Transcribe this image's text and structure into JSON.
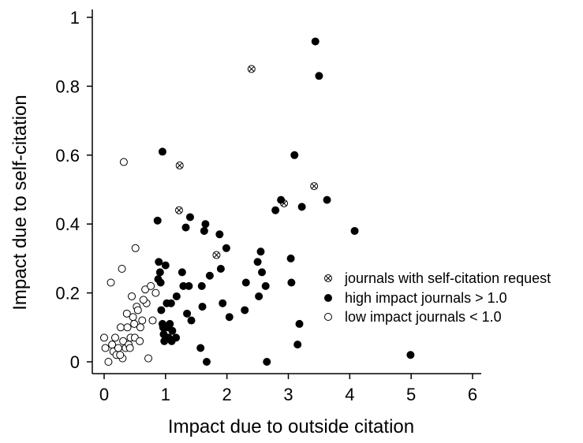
{
  "chart_data": {
    "type": "scatter",
    "title": "",
    "xlabel": "Impact due to outside citation",
    "ylabel": "Impact due to self-citation",
    "xlim": [
      0,
      6
    ],
    "ylim": [
      0,
      1
    ],
    "xticks": [
      "0",
      "1",
      "2",
      "3",
      "4",
      "5",
      "6"
    ],
    "yticks": [
      "0",
      "0.2",
      "0.4",
      "0.6",
      "0.8",
      "1"
    ],
    "grid": false,
    "legend_position": "right",
    "series": [
      {
        "name": "journals with self-citation request",
        "marker": "circle-crossed",
        "points": [
          [
            1.23,
            0.57
          ],
          [
            1.22,
            0.44
          ],
          [
            1.83,
            0.31
          ],
          [
            2.4,
            0.85
          ],
          [
            2.93,
            0.46
          ],
          [
            3.42,
            0.51
          ]
        ]
      },
      {
        "name": "high impact journals > 1.0",
        "marker": "filled-circle",
        "points": [
          [
            0.95,
            0.61
          ],
          [
            0.87,
            0.41
          ],
          [
            0.89,
            0.29
          ],
          [
            0.88,
            0.24
          ],
          [
            0.91,
            0.26
          ],
          [
            0.92,
            0.23
          ],
          [
            0.93,
            0.15
          ],
          [
            0.95,
            0.11
          ],
          [
            0.96,
            0.1
          ],
          [
            0.97,
            0.08
          ],
          [
            0.98,
            0.06
          ],
          [
            1.0,
            0.28
          ],
          [
            1.02,
            0.17
          ],
          [
            1.03,
            0.1
          ],
          [
            1.05,
            0.07
          ],
          [
            1.07,
            0.11
          ],
          [
            1.09,
            0.17
          ],
          [
            1.1,
            0.06
          ],
          [
            1.11,
            0.09
          ],
          [
            1.17,
            0.07
          ],
          [
            1.18,
            0.19
          ],
          [
            1.27,
            0.26
          ],
          [
            1.29,
            0.22
          ],
          [
            1.33,
            0.39
          ],
          [
            1.35,
            0.14
          ],
          [
            1.38,
            0.22
          ],
          [
            1.4,
            0.42
          ],
          [
            1.42,
            0.12
          ],
          [
            1.57,
            0.04
          ],
          [
            1.59,
            0.22
          ],
          [
            1.6,
            0.16
          ],
          [
            1.63,
            0.38
          ],
          [
            1.65,
            0.4
          ],
          [
            1.67,
            0.0
          ],
          [
            1.72,
            0.25
          ],
          [
            1.88,
            0.37
          ],
          [
            1.9,
            0.27
          ],
          [
            1.93,
            0.17
          ],
          [
            1.99,
            0.33
          ],
          [
            2.04,
            0.13
          ],
          [
            2.29,
            0.15
          ],
          [
            2.31,
            0.23
          ],
          [
            2.5,
            0.29
          ],
          [
            2.52,
            0.19
          ],
          [
            2.55,
            0.32
          ],
          [
            2.57,
            0.26
          ],
          [
            2.63,
            0.22
          ],
          [
            2.65,
            0.0
          ],
          [
            2.79,
            0.44
          ],
          [
            2.88,
            0.47
          ],
          [
            3.04,
            0.3
          ],
          [
            3.05,
            0.23
          ],
          [
            3.1,
            0.6
          ],
          [
            3.15,
            0.05
          ],
          [
            3.18,
            0.11
          ],
          [
            3.22,
            0.45
          ],
          [
            3.44,
            0.93
          ],
          [
            3.5,
            0.83
          ],
          [
            3.63,
            0.47
          ],
          [
            4.08,
            0.38
          ],
          [
            4.99,
            0.02
          ]
        ]
      },
      {
        "name": "low impact journals < 1.0",
        "marker": "open-circle",
        "points": [
          [
            0.0,
            0.07
          ],
          [
            0.02,
            0.04
          ],
          [
            0.07,
            0.0
          ],
          [
            0.11,
            0.23
          ],
          [
            0.13,
            0.05
          ],
          [
            0.15,
            0.03
          ],
          [
            0.18,
            0.07
          ],
          [
            0.2,
            0.02
          ],
          [
            0.23,
            0.04
          ],
          [
            0.27,
            0.1
          ],
          [
            0.29,
            0.27
          ],
          [
            0.3,
            0.01
          ],
          [
            0.31,
            0.06
          ],
          [
            0.32,
            0.58
          ],
          [
            0.35,
            0.04
          ],
          [
            0.37,
            0.14
          ],
          [
            0.38,
            0.1
          ],
          [
            0.4,
            0.05
          ],
          [
            0.42,
            0.04
          ],
          [
            0.43,
            0.07
          ],
          [
            0.45,
            0.19
          ],
          [
            0.47,
            0.13
          ],
          [
            0.49,
            0.11
          ],
          [
            0.5,
            0.07
          ],
          [
            0.51,
            0.33
          ],
          [
            0.53,
            0.16
          ],
          [
            0.55,
            0.15
          ],
          [
            0.59,
            0.1
          ],
          [
            0.62,
            0.12
          ],
          [
            0.67,
            0.21
          ],
          [
            0.69,
            0.17
          ],
          [
            0.72,
            0.01
          ],
          [
            0.76,
            0.22
          ],
          [
            0.79,
            0.12
          ],
          [
            0.84,
            0.2
          ],
          [
            0.58,
            0.06
          ],
          [
            0.26,
            0.02
          ],
          [
            0.64,
            0.18
          ]
        ]
      }
    ]
  }
}
